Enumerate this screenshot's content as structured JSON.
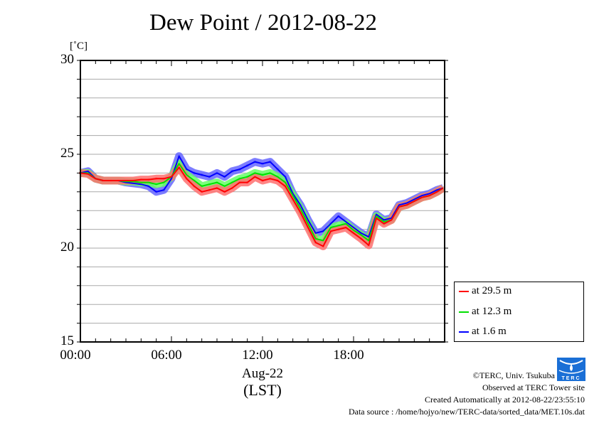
{
  "chart_data": {
    "type": "line",
    "title": "Dew Point / 2012-08-22",
    "ylabel": "[˚C]",
    "xlabel": "(LST)",
    "x_date_label": "Aug-22",
    "ylim": [
      15,
      30
    ],
    "xlim_hours": [
      0,
      24
    ],
    "yticks": [
      {
        "v": 30,
        "label": "30"
      },
      {
        "v": 25,
        "label": "25"
      },
      {
        "v": 20,
        "label": "20"
      },
      {
        "v": 15,
        "label": "15"
      }
    ],
    "xticks": [
      {
        "h": 0,
        "label": "00:00"
      },
      {
        "h": 6,
        "label": "06:00"
      },
      {
        "h": 12,
        "label": "12:00"
      },
      {
        "h": 18,
        "label": "18:00"
      }
    ],
    "grid": true,
    "legend_position": "right-bottom, outside",
    "x_hours": [
      0,
      0.5,
      1,
      1.5,
      2,
      2.5,
      3,
      3.5,
      4,
      4.5,
      5,
      5.5,
      6,
      6.5,
      7,
      7.5,
      8,
      8.5,
      9,
      9.5,
      10,
      10.5,
      11,
      11.5,
      12,
      12.5,
      13,
      13.5,
      14,
      14.5,
      15,
      15.5,
      16,
      16.5,
      17,
      17.5,
      18,
      18.5,
      19,
      19.5,
      20,
      20.5,
      21,
      21.5,
      22,
      22.5,
      23,
      23.5,
      23.9
    ],
    "series": [
      {
        "name": "at 1.6 m",
        "color": "#0000ff",
        "band": "#6666ff",
        "values": [
          24.0,
          24.1,
          23.7,
          23.6,
          23.6,
          23.6,
          23.5,
          23.45,
          23.4,
          23.3,
          23.0,
          23.1,
          23.7,
          24.9,
          24.2,
          24.0,
          23.9,
          23.8,
          24.0,
          23.8,
          24.1,
          24.2,
          24.4,
          24.6,
          24.5,
          24.6,
          24.2,
          23.8,
          22.9,
          22.3,
          21.5,
          20.8,
          20.9,
          21.3,
          21.7,
          21.4,
          21.1,
          20.8,
          20.6,
          21.8,
          21.5,
          21.6,
          22.3,
          22.4,
          22.6,
          22.8,
          22.9,
          23.1,
          23.2
        ]
      },
      {
        "name": "at 12.3 m",
        "color": "#00e000",
        "band": "#66ff66",
        "values": [
          24.0,
          24.0,
          23.7,
          23.6,
          23.6,
          23.6,
          23.55,
          23.55,
          23.5,
          23.5,
          23.4,
          23.5,
          23.8,
          24.5,
          23.9,
          23.6,
          23.3,
          23.4,
          23.5,
          23.3,
          23.5,
          23.7,
          23.8,
          24.0,
          23.9,
          24.0,
          23.8,
          23.5,
          22.8,
          22.1,
          21.3,
          20.5,
          20.4,
          21.1,
          21.2,
          21.3,
          20.95,
          20.7,
          20.4,
          21.7,
          21.4,
          21.5,
          22.2,
          22.3,
          22.5,
          22.7,
          22.8,
          23.0,
          23.2
        ]
      },
      {
        "name": "at 29.5 m",
        "color": "#ff0000",
        "band": "#ff7070",
        "values": [
          24.0,
          23.95,
          23.7,
          23.6,
          23.6,
          23.6,
          23.6,
          23.6,
          23.65,
          23.65,
          23.7,
          23.7,
          23.8,
          24.3,
          23.7,
          23.3,
          23.0,
          23.1,
          23.2,
          23.0,
          23.2,
          23.5,
          23.5,
          23.8,
          23.6,
          23.7,
          23.6,
          23.3,
          22.6,
          21.9,
          21.1,
          20.3,
          20.1,
          20.9,
          21.0,
          21.1,
          20.8,
          20.5,
          20.15,
          21.6,
          21.3,
          21.5,
          22.2,
          22.3,
          22.5,
          22.7,
          22.8,
          23.0,
          23.2
        ]
      }
    ]
  },
  "legend": [
    {
      "label": "at 29.5 m",
      "color": "#ff0000"
    },
    {
      "label": "at 12.3 m",
      "color": "#00e000"
    },
    {
      "label": "at 1.6 m",
      "color": "#0000ff"
    }
  ],
  "credits": {
    "copyright": "©TERC, Univ. Tsukuba",
    "observed": "Observed at TERC Tower site",
    "created": "Created Automatically at 2012-08-22/23:55:10",
    "source": "Data source : /home/hojyo/new/TERC-data/sorted_data/MET.10s.dat",
    "logo_text": "TERC"
  }
}
